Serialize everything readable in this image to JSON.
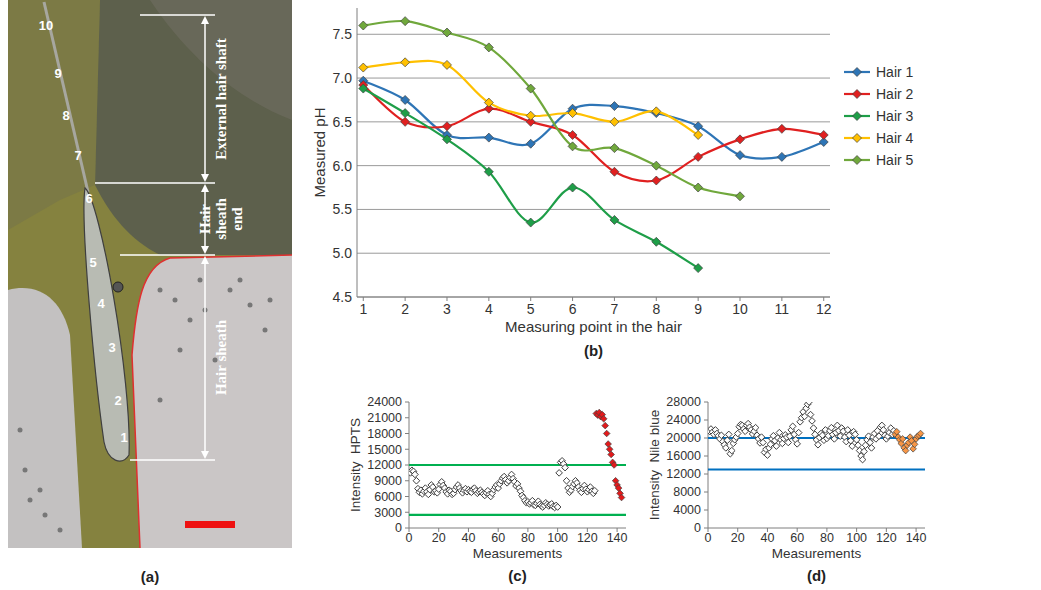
{
  "image_panel": {
    "panel_label": "(a)",
    "point_labels": [
      "1",
      "2",
      "3",
      "4",
      "5",
      "6",
      "7",
      "8",
      "9",
      "10"
    ],
    "regions": [
      "External hair shaft",
      "Hair sheath end",
      "Hair sheath"
    ]
  },
  "chart_data": [
    {
      "type": "line",
      "panel_label": "(b)",
      "x_label": "Measuring point in the hair",
      "y_label": "Measured pH",
      "x": [
        1,
        2,
        3,
        4,
        5,
        6,
        7,
        8,
        9,
        10,
        11,
        12
      ],
      "xlim": [
        0.85,
        12.15
      ],
      "xticks": [
        1,
        2,
        3,
        4,
        5,
        6,
        7,
        8,
        9,
        10,
        11,
        12
      ],
      "ylim": [
        4.5,
        7.8
      ],
      "yticks": [
        4.5,
        {
          "value": 5,
          "label": "5.0"
        },
        5.5,
        {
          "value": 6,
          "label": "6.0"
        },
        6.5,
        {
          "value": 7,
          "label": "7.0"
        },
        7.5
      ],
      "grid": true,
      "legend": "right",
      "marker": "diamond",
      "series": [
        {
          "name": "Hair 1",
          "color": "#2e75b6",
          "values": [
            6.97,
            6.75,
            6.35,
            6.32,
            6.25,
            6.65,
            6.68,
            6.6,
            6.45,
            6.12,
            6.1,
            6.27
          ]
        },
        {
          "name": "Hair 2",
          "color": "#e02020",
          "values": [
            6.92,
            6.5,
            6.45,
            6.65,
            6.5,
            6.35,
            5.93,
            5.83,
            6.1,
            6.3,
            6.42,
            6.35
          ]
        },
        {
          "name": "Hair 3",
          "color": "#1e9e48",
          "values": [
            6.88,
            6.6,
            6.3,
            5.93,
            5.35,
            5.75,
            5.38,
            5.13,
            4.83,
            null,
            null,
            null
          ]
        },
        {
          "name": "Hair 4",
          "color": "#ffc000",
          "values": [
            7.12,
            7.18,
            7.15,
            6.72,
            6.57,
            6.6,
            6.5,
            6.62,
            6.35,
            null,
            null,
            null
          ]
        },
        {
          "name": "Hair 5",
          "color": "#70a83c",
          "values": [
            7.6,
            7.65,
            7.52,
            7.35,
            6.88,
            6.22,
            6.2,
            6.0,
            5.75,
            5.65,
            null,
            null
          ]
        }
      ]
    },
    {
      "type": "scatter",
      "panel_label": "(c)",
      "x_label": "Measurements",
      "y_label": "Intensity  HPTS",
      "xlim": [
        0,
        146
      ],
      "xticks": [
        0,
        20,
        40,
        60,
        80,
        100,
        120,
        140
      ],
      "ylim": [
        0,
        24000
      ],
      "yticks": [
        0,
        3000,
        6000,
        9000,
        12000,
        15000,
        18000,
        21000,
        24000
      ],
      "grid": false,
      "series": [
        {
          "type": "hline",
          "color": "#00b050",
          "values": [
            2500,
            12000
          ]
        },
        {
          "color": "#404040",
          "marker": "diamond-open",
          "x": [
            1,
            2,
            3,
            4,
            5,
            6,
            7,
            8,
            9,
            10,
            11,
            12,
            13,
            14,
            15,
            16,
            17,
            18,
            19,
            20,
            21,
            22,
            23,
            24,
            25,
            26,
            27,
            28,
            29,
            30,
            31,
            32,
            33,
            34,
            35,
            36,
            37,
            38,
            39,
            40,
            41,
            42,
            43,
            44,
            45,
            46,
            47,
            48,
            49,
            50,
            51,
            52,
            53,
            54,
            55,
            56,
            57,
            58,
            59,
            60,
            61,
            62,
            63,
            64,
            65,
            66,
            67,
            68,
            69,
            70,
            71,
            72,
            73,
            74,
            75,
            76,
            77,
            78,
            79,
            80,
            81,
            82,
            83,
            84,
            85,
            86,
            87,
            88,
            89,
            90,
            91,
            92,
            93,
            94,
            95,
            96,
            97,
            98,
            99,
            100,
            101,
            102,
            103,
            104,
            105,
            106,
            107,
            108,
            109,
            110,
            111,
            112,
            113,
            114,
            115,
            116,
            117,
            118,
            119,
            120,
            121,
            122,
            123,
            124,
            125
          ],
          "values": [
            10500,
            11000,
            10800,
            10200,
            9000,
            7500,
            6800,
            7200,
            6500,
            7000,
            7600,
            6900,
            6400,
            7300,
            8200,
            7800,
            6900,
            7100,
            6700,
            7400,
            8300,
            8800,
            8100,
            7600,
            6900,
            6500,
            7200,
            7000,
            6400,
            6600,
            7300,
            7800,
            8200,
            7600,
            7100,
            6700,
            7200,
            7500,
            6900,
            7300,
            7000,
            6800,
            7400,
            7600,
            7100,
            6600,
            6900,
            7200,
            6800,
            6500,
            6200,
            6700,
            7100,
            6400,
            6000,
            6600,
            7300,
            7800,
            8200,
            7600,
            8400,
            9000,
            9500,
            9800,
            9200,
            8600,
            9000,
            9600,
            10200,
            9400,
            8800,
            8000,
            8400,
            7600,
            7000,
            6200,
            5800,
            5200,
            4800,
            5000,
            4600,
            4800,
            5200,
            4400,
            4300,
            4700,
            5100,
            4500,
            4200,
            4000,
            4300,
            4800,
            4500,
            4200,
            4400,
            4600,
            4100,
            3900,
            4300,
            4000,
            10500,
            12500,
            12800,
            12200,
            11500,
            9000,
            7600,
            6800,
            7200,
            7900,
            8400,
            9000,
            8600,
            7800,
            7200,
            6800,
            7500,
            8100,
            7400,
            6900,
            7300,
            7800,
            7000,
            6600,
            7100
          ]
        },
        {
          "color": "#e31a1c",
          "marker": "diamond",
          "x": [
            126,
            127,
            128,
            129,
            130,
            131,
            132,
            133,
            134,
            135,
            136,
            137,
            138,
            139,
            140,
            141,
            142,
            143
          ],
          "values": [
            21800,
            21500,
            22000,
            21200,
            21600,
            20800,
            19500,
            18000,
            16000,
            15000,
            14000,
            12500,
            12000,
            9000,
            8200,
            7600,
            6600,
            5800
          ]
        }
      ]
    },
    {
      "type": "scatter",
      "panel_label": "(d)",
      "x_label": "Measurements",
      "y_label": "Intensity  Nile blue",
      "xlim": [
        0,
        146
      ],
      "xticks": [
        0,
        20,
        40,
        60,
        80,
        100,
        120,
        140
      ],
      "ylim": [
        0,
        28000
      ],
      "yticks": [
        0,
        4000,
        8000,
        12000,
        16000,
        20000,
        24000,
        28000
      ],
      "grid": false,
      "series": [
        {
          "type": "hline",
          "color": "#0070c0",
          "values": [
            13000,
            20000
          ]
        },
        {
          "color": "#404040",
          "marker": "diamond-open",
          "x": [
            1,
            2,
            3,
            4,
            5,
            6,
            7,
            8,
            9,
            10,
            11,
            12,
            13,
            14,
            15,
            16,
            17,
            18,
            19,
            20,
            21,
            22,
            23,
            24,
            25,
            26,
            27,
            28,
            29,
            30,
            31,
            32,
            33,
            34,
            35,
            36,
            37,
            38,
            39,
            40,
            41,
            42,
            43,
            44,
            45,
            46,
            47,
            48,
            49,
            50,
            51,
            52,
            53,
            54,
            55,
            56,
            57,
            58,
            59,
            60,
            61,
            62,
            63,
            64,
            65,
            66,
            67,
            68,
            69,
            70,
            71,
            72,
            73,
            74,
            75,
            76,
            77,
            78,
            79,
            80,
            81,
            82,
            83,
            84,
            85,
            86,
            87,
            88,
            89,
            90,
            91,
            92,
            93,
            94,
            95,
            96,
            97,
            98,
            99,
            100,
            101,
            102,
            103,
            104,
            105,
            106,
            107,
            108,
            109,
            110,
            111,
            112,
            113,
            114,
            115,
            116,
            117,
            118,
            119,
            120,
            121,
            122,
            123,
            124,
            125
          ],
          "values": [
            21500,
            22000,
            21300,
            20800,
            21800,
            21000,
            20500,
            19800,
            20600,
            19200,
            18500,
            17800,
            19500,
            20800,
            16500,
            17200,
            18800,
            19600,
            20200,
            21000,
            22500,
            23000,
            22800,
            22000,
            21500,
            22800,
            23200,
            22400,
            21800,
            20900,
            21500,
            22300,
            20600,
            19800,
            18900,
            20200,
            19000,
            16800,
            17500,
            16200,
            17800,
            18600,
            19800,
            20500,
            19400,
            18200,
            20000,
            21200,
            19600,
            18800,
            19900,
            20700,
            20200,
            19000,
            20400,
            21800,
            22600,
            20800,
            19600,
            18700,
            21200,
            23600,
            24500,
            25800,
            24800,
            26600,
            27500,
            28000,
            25200,
            23800,
            22200,
            20800,
            19600,
            18500,
            20100,
            21000,
            20600,
            19500,
            21800,
            19900,
            20500,
            21600,
            22300,
            20800,
            19800,
            21200,
            22800,
            21600,
            20400,
            22200,
            21500,
            20200,
            19200,
            21800,
            20600,
            19400,
            18200,
            21400,
            20800,
            19600,
            18400,
            17200,
            16000,
            15200,
            17000,
            18400,
            19600,
            20400,
            19000,
            17800,
            20200,
            21000,
            19800,
            21600,
            20400,
            22400,
            22800,
            21800,
            20600,
            19800,
            20400,
            21200,
            22200,
            20800,
            21600
          ]
        },
        {
          "color": "#f79646",
          "marker": "diamond",
          "x": [
            126,
            127,
            128,
            129,
            130,
            131,
            132,
            133,
            134,
            135,
            136,
            137,
            138,
            139,
            140,
            141,
            142,
            143
          ],
          "values": [
            20800,
            21400,
            20200,
            19600,
            18800,
            19800,
            17800,
            17200,
            18400,
            19000,
            20200,
            19400,
            17600,
            18600,
            19800,
            20400,
            20600,
            21000
          ]
        }
      ]
    }
  ]
}
